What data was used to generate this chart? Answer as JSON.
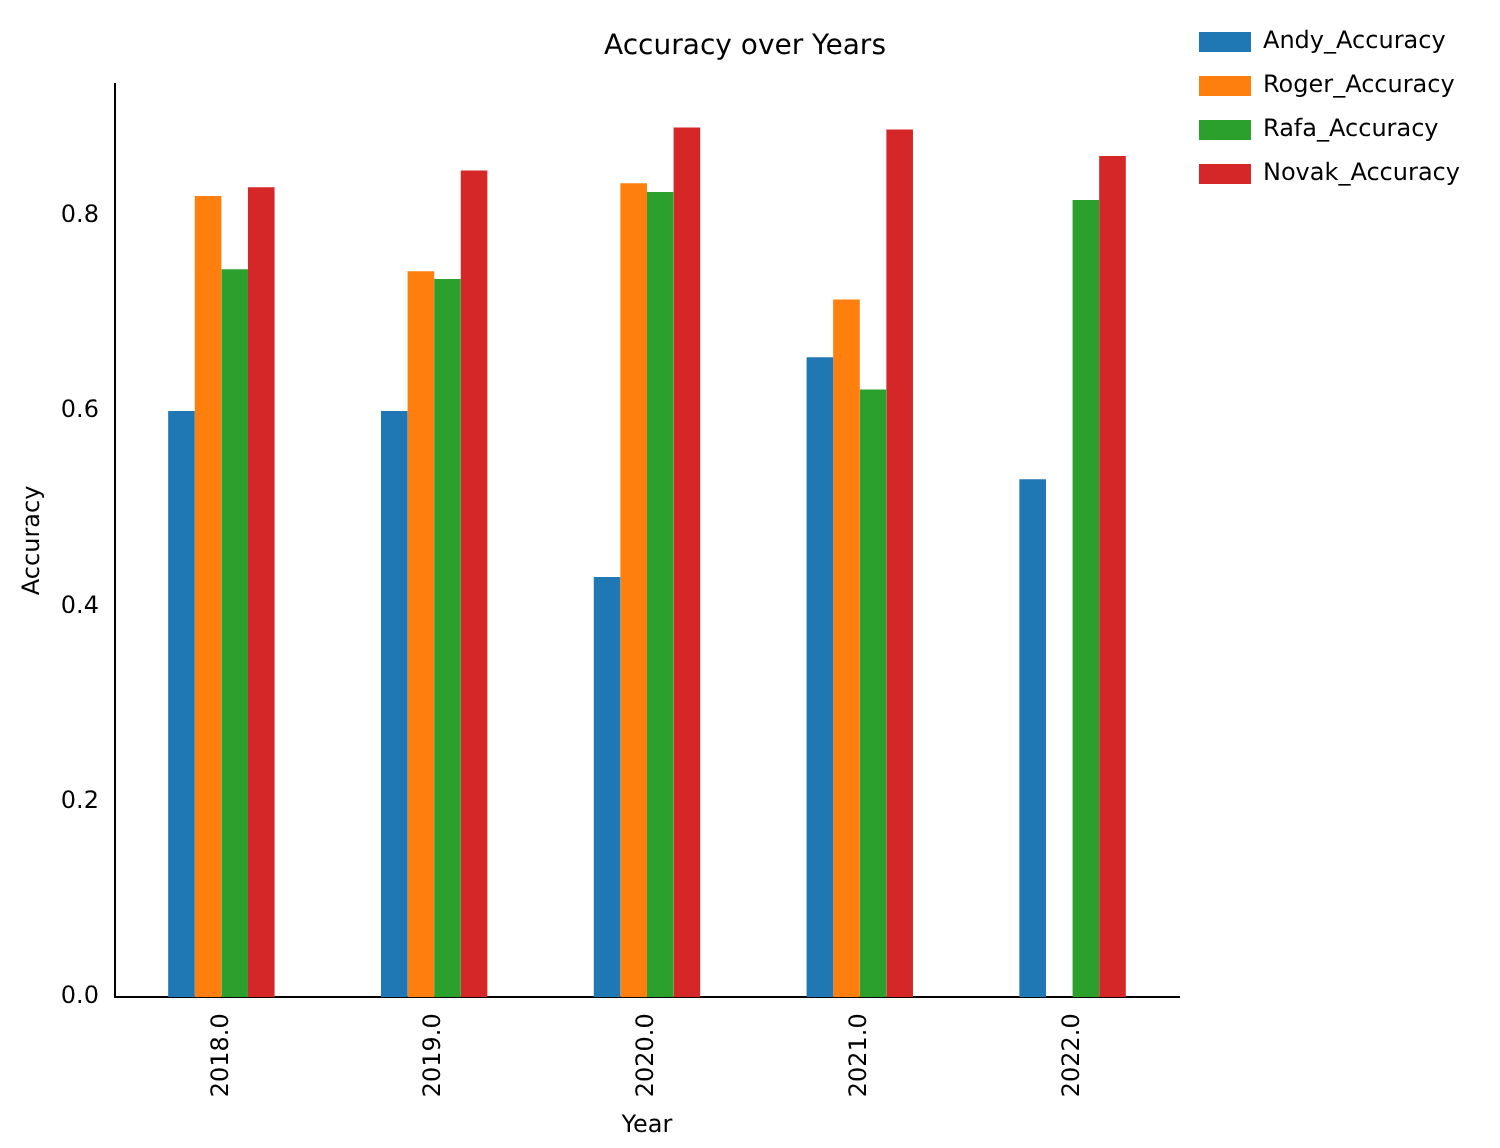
{
  "chart_data": {
    "type": "bar",
    "title": "Accuracy over Years",
    "xlabel": "Year",
    "ylabel": "Accuracy",
    "categories": [
      "2018.0",
      "2019.0",
      "2020.0",
      "2021.0",
      "2022.0"
    ],
    "series": [
      {
        "name": "Andy_Accuracy",
        "color": "#1f77b4",
        "values": [
          0.6,
          0.6,
          0.43,
          0.655,
          0.53
        ]
      },
      {
        "name": "Roger_Accuracy",
        "color": "#ff7f0e",
        "values": [
          0.82,
          0.743,
          0.833,
          0.714,
          null
        ]
      },
      {
        "name": "Rafa_Accuracy",
        "color": "#2ca02c",
        "values": [
          0.745,
          0.735,
          0.824,
          0.622,
          0.816
        ]
      },
      {
        "name": "Novak_Accuracy",
        "color": "#d62728",
        "values": [
          0.829,
          0.846,
          0.89,
          0.888,
          0.861
        ]
      }
    ],
    "ylim": [
      0,
      0.935
    ],
    "yticks": [
      {
        "value": 0,
        "label": "0.0"
      },
      {
        "value": 0.2,
        "label": "0.2"
      },
      {
        "value": 0.4,
        "label": "0.4"
      },
      {
        "value": 0.6,
        "label": "0.6"
      },
      {
        "value": 0.8,
        "label": "0.8"
      }
    ],
    "grid": false,
    "legend": "top right"
  }
}
